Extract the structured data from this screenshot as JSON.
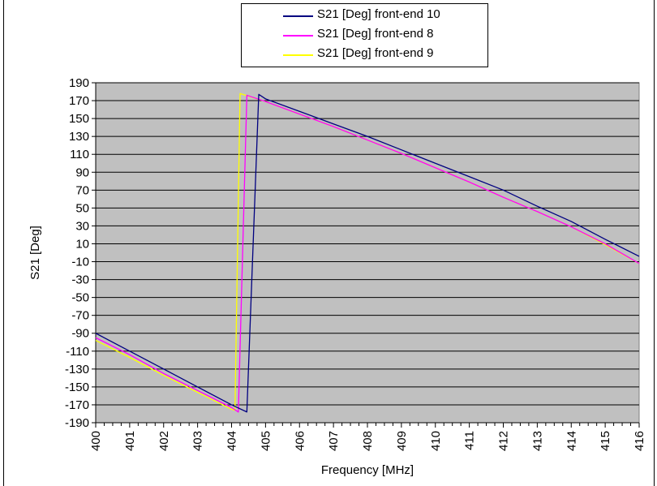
{
  "chart_data": {
    "type": "line",
    "title": "",
    "xlabel": "Frequency [MHz]",
    "ylabel": "S21 [Deg]",
    "xlim": [
      400,
      416
    ],
    "ylim": [
      -190,
      190
    ],
    "x_ticks": [
      "400",
      "401",
      "402",
      "403",
      "404",
      "405",
      "406",
      "407",
      "408",
      "409",
      "410",
      "411",
      "412",
      "413",
      "414",
      "415",
      "416"
    ],
    "y_ticks": [
      "190",
      "170",
      "150",
      "130",
      "110",
      "90",
      "70",
      "50",
      "30",
      "10",
      "-10",
      "-30",
      "-50",
      "-70",
      "-90",
      "-110",
      "-130",
      "-150",
      "-170",
      "-190"
    ],
    "grid": true,
    "plot_background": "#c0c0c0",
    "legend_position": "top",
    "series": [
      {
        "name": "S21 [Deg] front-end 10",
        "color": "#000080",
        "points": [
          [
            400,
            -90
          ],
          [
            401,
            -110
          ],
          [
            402,
            -130
          ],
          [
            403,
            -150
          ],
          [
            404,
            -170
          ],
          [
            404.45,
            -178
          ],
          [
            404.8,
            177
          ],
          [
            405,
            172
          ],
          [
            406,
            158
          ],
          [
            407,
            144
          ],
          [
            408,
            130
          ],
          [
            409,
            115
          ],
          [
            410,
            100
          ],
          [
            411,
            85
          ],
          [
            412,
            70
          ],
          [
            413,
            52
          ],
          [
            414,
            35
          ],
          [
            415,
            15
          ],
          [
            416,
            -4
          ]
        ]
      },
      {
        "name": "S21 [Deg] front-end 8",
        "color": "#ff00ff",
        "points": [
          [
            400,
            -95
          ],
          [
            401,
            -114
          ],
          [
            402,
            -135
          ],
          [
            403,
            -154
          ],
          [
            404,
            -173
          ],
          [
            404.2,
            -178
          ],
          [
            404.45,
            176
          ],
          [
            405,
            169
          ],
          [
            406,
            155
          ],
          [
            407,
            141
          ],
          [
            408,
            126
          ],
          [
            409,
            111
          ],
          [
            410,
            95
          ],
          [
            411,
            79
          ],
          [
            412,
            62
          ],
          [
            413,
            46
          ],
          [
            414,
            29
          ],
          [
            415,
            10
          ],
          [
            416,
            -12
          ]
        ]
      },
      {
        "name": "S21 [Deg] front-end 9",
        "color": "#ffff00",
        "points": [
          [
            400,
            -98
          ],
          [
            401,
            -117
          ],
          [
            402,
            -137
          ],
          [
            403,
            -156
          ],
          [
            404,
            -175
          ],
          [
            404.1,
            -176
          ],
          [
            404.25,
            178
          ],
          [
            405,
            169
          ],
          [
            406,
            155
          ],
          [
            407,
            141
          ],
          [
            408,
            126
          ],
          [
            409,
            111
          ],
          [
            410,
            95
          ],
          [
            411,
            79
          ],
          [
            412,
            62
          ],
          [
            413,
            46
          ],
          [
            414,
            29
          ],
          [
            415,
            9
          ],
          [
            416,
            -12
          ]
        ]
      }
    ]
  }
}
